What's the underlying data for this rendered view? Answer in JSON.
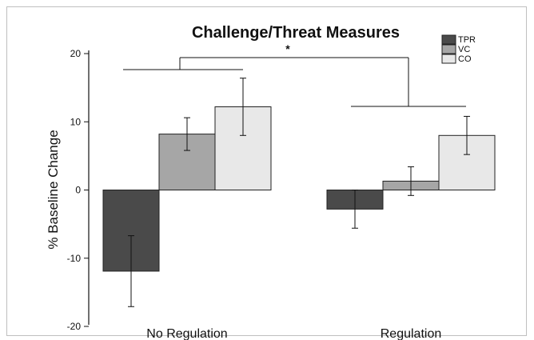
{
  "chart_data": {
    "type": "bar",
    "title": "Challenge/Threat Measures",
    "ylabel": "% Baseline Change",
    "xlabel": "",
    "ylim": [
      -20,
      20
    ],
    "yticks": [
      "20",
      "10",
      "0",
      "-10",
      "-20"
    ],
    "categories": [
      "No Regulation",
      "Regulation"
    ],
    "series": [
      {
        "name": "TPR",
        "color": "#4a4a4a",
        "values": [
          -11.9,
          -2.8
        ],
        "error": [
          5.2,
          2.8
        ]
      },
      {
        "name": "VC",
        "color": "#a6a6a6",
        "values": [
          8.2,
          1.3
        ],
        "error": [
          2.4,
          2.1
        ]
      },
      {
        "name": "CO",
        "color": "#e8e8e8",
        "values": [
          12.2,
          8.0
        ],
        "error": [
          4.2,
          2.8
        ]
      }
    ],
    "annotation": "*",
    "legend_position": "top-right",
    "grid": false
  }
}
